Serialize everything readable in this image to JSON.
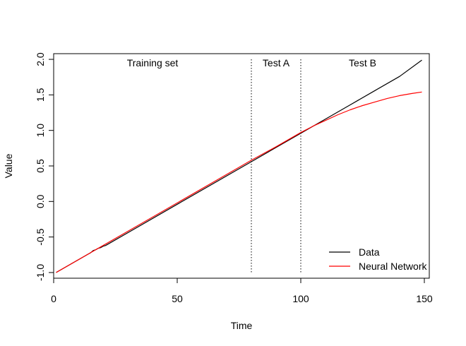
{
  "chart_data": {
    "type": "line",
    "title": "",
    "xlabel": "Time",
    "ylabel": "Value",
    "xlim": [
      0,
      152
    ],
    "ylim": [
      -1.08,
      2.08
    ],
    "x_ticks": [
      0,
      50,
      100,
      150
    ],
    "y_ticks": [
      -1.0,
      -0.5,
      0.0,
      0.5,
      1.0,
      1.5,
      2.0
    ],
    "x_tick_labels": [
      "0",
      "50",
      "100",
      "150"
    ],
    "y_tick_labels": [
      "-1.0",
      "-0.5",
      "0.0",
      "0.5",
      "1.0",
      "1.5",
      "2.0"
    ],
    "grid": false,
    "legend_position": "bottom-right",
    "vertical_lines": [
      {
        "x": 80,
        "style": "dotted"
      },
      {
        "x": 100,
        "style": "dotted"
      }
    ],
    "region_labels": [
      {
        "text": "Training set",
        "x": 40,
        "y": 1.9
      },
      {
        "text": "Test A",
        "x": 90,
        "y": 1.9
      },
      {
        "text": "Test B",
        "x": 125,
        "y": 1.9
      }
    ],
    "series": [
      {
        "name": "Data",
        "color": "#000000",
        "x": [
          1,
          15,
          16,
          17,
          18,
          19,
          20,
          21,
          22,
          30,
          50,
          80,
          100,
          110,
          120,
          130,
          140,
          149
        ],
        "y": [
          -1.0,
          -0.72,
          -0.69,
          -0.68,
          -0.66,
          -0.65,
          -0.63,
          -0.62,
          -0.6,
          -0.44,
          -0.04,
          0.56,
          0.96,
          1.16,
          1.36,
          1.56,
          1.76,
          1.99
        ]
      },
      {
        "name": "Neural Network",
        "color": "#ff0000",
        "x": [
          1,
          20,
          40,
          60,
          80,
          90,
          100,
          105,
          110,
          115,
          120,
          125,
          130,
          135,
          140,
          145,
          149
        ],
        "y": [
          -1.0,
          -0.62,
          -0.22,
          0.18,
          0.58,
          0.77,
          0.97,
          1.06,
          1.14,
          1.22,
          1.29,
          1.35,
          1.4,
          1.45,
          1.49,
          1.52,
          1.54
        ]
      }
    ]
  }
}
